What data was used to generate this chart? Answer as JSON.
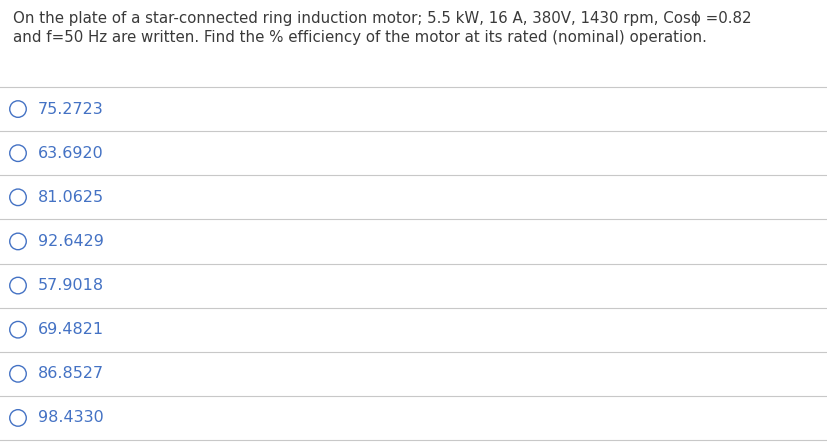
{
  "question_line1": "On the plate of a star-connected ring induction motor; 5.5 kW, 16 A, 380V, 1430 rpm, Cosϕ =0.82",
  "question_line2": "and f=50 Hz are written. Find the % efficiency of the motor at its rated (nominal) operation.",
  "options": [
    "75.2723",
    "63.6920",
    "81.0625",
    "92.6429",
    "57.9018",
    "69.4821",
    "86.8527",
    "98.4330"
  ],
  "text_color": "#4472C4",
  "question_color": "#3a3a3a",
  "line_color": "#C8C8C8",
  "background_color": "#FFFFFF",
  "question_fontsize": 10.8,
  "option_fontsize": 11.5,
  "fig_width": 8.27,
  "fig_height": 4.42,
  "dpi": 100
}
